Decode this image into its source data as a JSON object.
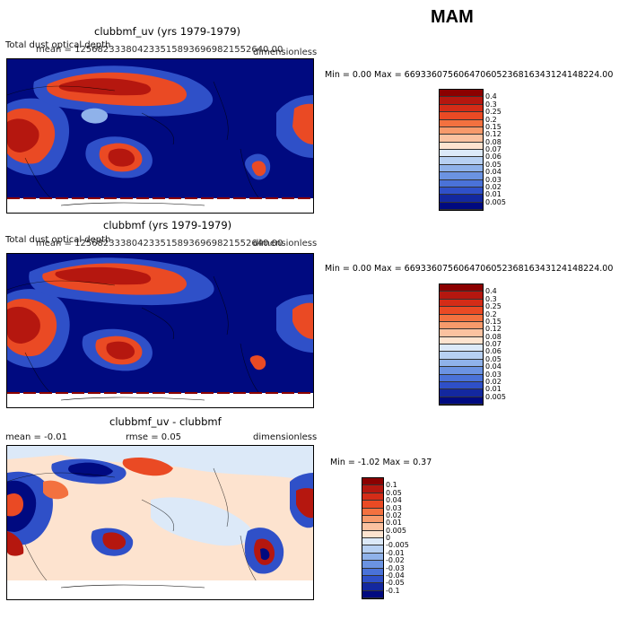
{
  "season": "MAM",
  "panels": [
    {
      "title": "clubbmf_uv (yrs 1979-1979)",
      "overlay_line_a": "Total dust optical depth",
      "overlay_line_b": "mean = 1256823338042335158936969821552640.00",
      "units": "dimensionless",
      "minmax": "Min =    0.00 Max = 6693360756064706052368163431241482​24.00",
      "colorbar": {
        "labels": [
          "0.4",
          "0.3",
          "0.25",
          "0.2",
          "0.15",
          "0.12",
          "0.08",
          "0.07",
          "0.06",
          "0.05",
          "0.04",
          "0.03",
          "0.02",
          "0.01",
          "0.005"
        ],
        "colors": [
          "#8b0000",
          "#b5170f",
          "#d42c17",
          "#ea4a24",
          "#f3713f",
          "#f79a6b",
          "#fbc2a0",
          "#fde3cf",
          "#dce9f8",
          "#b7d0f2",
          "#8fb2ea",
          "#6b93e2",
          "#4a72d8",
          "#2f50c8",
          "#13289f",
          "#000a80"
        ]
      },
      "map_colors": [
        "#000a80",
        "#2f50c8",
        "#8fb2ea",
        "#fbc2a0",
        "#ea4a24",
        "#b5170f"
      ]
    },
    {
      "title": "clubbmf (yrs 1979-1979)",
      "overlay_line_a": "Total dust optical depth",
      "overlay_line_b": "mean = 1256823338042335158936969821552640.00",
      "units": "dimensionless",
      "minmax": "Min =    0.00 Max = 669336075606470605236816343124148224.00",
      "colorbar": {
        "labels": [
          "0.4",
          "0.3",
          "0.25",
          "0.2",
          "0.15",
          "0.12",
          "0.08",
          "0.07",
          "0.06",
          "0.05",
          "0.04",
          "0.03",
          "0.02",
          "0.01",
          "0.005"
        ],
        "colors": [
          "#8b0000",
          "#b5170f",
          "#d42c17",
          "#ea4a24",
          "#f3713f",
          "#f79a6b",
          "#fbc2a0",
          "#fde3cf",
          "#dce9f8",
          "#b7d0f2",
          "#8fb2ea",
          "#6b93e2",
          "#4a72d8",
          "#2f50c8",
          "#13289f",
          "#000a80"
        ]
      }
    },
    {
      "title": "clubbmf_uv - clubbmf",
      "mean_text": "mean =   -0.01",
      "rmse_text": "rmse =    0.05",
      "units": "dimensionless",
      "minmax": "Min =  -1.02 Max =    0.37",
      "colorbar": {
        "labels": [
          "0.1",
          "0.05",
          "0.04",
          "0.03",
          "0.02",
          "0.01",
          "0.005",
          "0",
          "-0.005",
          "-0.01",
          "-0.02",
          "-0.03",
          "-0.04",
          "-0.05",
          "-0.1"
        ],
        "colors": [
          "#8b0000",
          "#b5170f",
          "#d42c17",
          "#ea4a24",
          "#f3713f",
          "#f79a6b",
          "#fbc2a0",
          "#fde3cf",
          "#dce9f8",
          "#b7d0f2",
          "#8fb2ea",
          "#6b93e2",
          "#4a72d8",
          "#2f50c8",
          "#13289f",
          "#000a80"
        ]
      }
    }
  ]
}
